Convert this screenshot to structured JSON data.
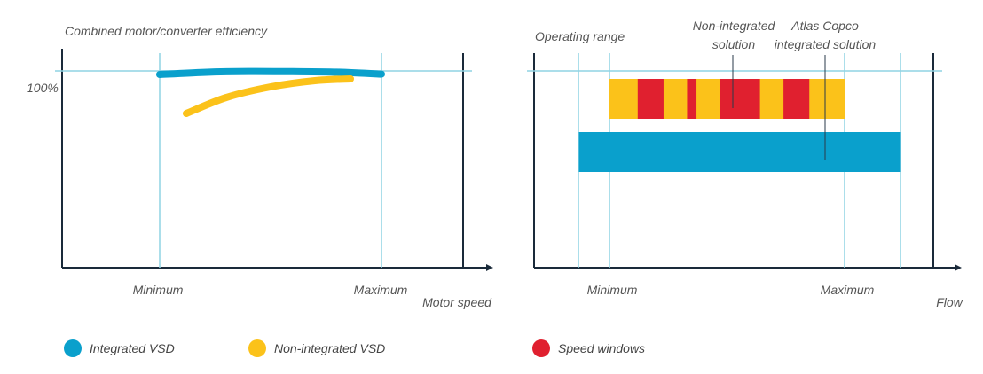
{
  "chart_data": [
    {
      "type": "line",
      "title": "Combined motor/converter efficiency",
      "xlabel": "Motor speed",
      "ylabel": "",
      "x_ticks": [
        "Minimum",
        "Maximum"
      ],
      "y_ticks": [
        "100%"
      ],
      "series": [
        {
          "name": "Integrated VSD",
          "color": "#0aa0cc",
          "x": [
            0,
            0.2,
            0.4,
            0.6,
            0.8,
            1.0
          ],
          "y": [
            98,
            99.2,
            99.7,
            99.6,
            99.3,
            98.2
          ]
        },
        {
          "name": "Non-integrated VSD",
          "color": "#fbc21a",
          "x": [
            0.12,
            0.3,
            0.5,
            0.7,
            0.86
          ],
          "y": [
            76,
            85,
            91,
            94.5,
            95.5
          ]
        }
      ]
    },
    {
      "type": "bar",
      "title": "Operating range",
      "xlabel": "Flow",
      "x_ticks": [
        "Minimum",
        "Maximum"
      ],
      "annotations": [
        "Non-integrated solution",
        "Atlas Copco integrated solution"
      ],
      "bars": [
        {
          "name": "Non-integrated solution",
          "color": "#fbc21a",
          "start": 0,
          "end": 1,
          "speed_windows": [
            [
              0.12,
              0.23
            ],
            [
              0.33,
              0.37
            ],
            [
              0.47,
              0.64
            ],
            [
              0.74,
              0.85
            ]
          ]
        },
        {
          "name": "Atlas Copco integrated solution",
          "color": "#0aa0cc",
          "start": -0.13,
          "end": 1.24
        }
      ]
    }
  ],
  "legend": [
    {
      "label": "Integrated VSD",
      "color": "#0aa0cc"
    },
    {
      "label": "Non-integrated VSD",
      "color": "#fbc21a"
    },
    {
      "label": "Speed windows",
      "color": "#e0202f"
    }
  ]
}
